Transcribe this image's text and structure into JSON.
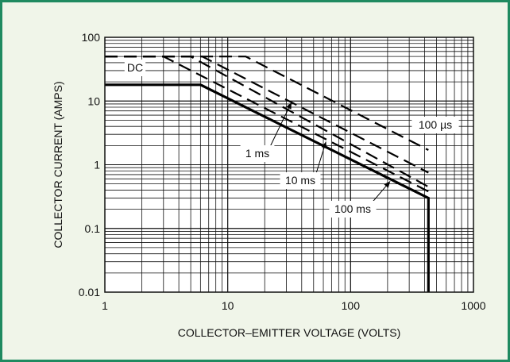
{
  "chart_data": {
    "type": "line",
    "title": "",
    "xlabel": "COLLECTOR–EMITTER VOLTAGE (VOLTS)",
    "ylabel": "COLLECTOR CURRENT (AMPS)",
    "x_scale": "log",
    "y_scale": "log",
    "xlim": [
      1,
      1000
    ],
    "ylim": [
      0.01,
      100
    ],
    "x_ticks": [
      "1",
      "10",
      "100",
      "1000"
    ],
    "y_ticks": [
      "0.01",
      "0.1",
      "1",
      "10",
      "100"
    ],
    "grid": true,
    "series": [
      {
        "name": "DC",
        "style": "solid",
        "x": [
          1,
          6,
          430,
          430
        ],
        "y": [
          18,
          18,
          0.3,
          0.01
        ]
      },
      {
        "name": "100 ms",
        "style": "dashed",
        "x": [
          1,
          3,
          430
        ],
        "y": [
          50,
          50,
          0.38
        ]
      },
      {
        "name": "10 ms",
        "style": "dashed",
        "x": [
          1,
          5,
          430
        ],
        "y": [
          50,
          50,
          0.45
        ]
      },
      {
        "name": "1 ms",
        "style": "dashed",
        "x": [
          1,
          6.2,
          430
        ],
        "y": [
          50,
          50,
          0.75
        ]
      },
      {
        "name": "100 µs",
        "style": "dashed",
        "x": [
          1,
          14,
          430
        ],
        "y": [
          50,
          50,
          1.7
        ]
      }
    ],
    "callouts": [
      {
        "text": "DC",
        "series": "DC",
        "x": 6,
        "y": 18
      },
      {
        "text": "1 ms",
        "series": "1 ms",
        "x": 33,
        "y": 9.5
      },
      {
        "text": "10 ms",
        "series": "10 ms",
        "x": 63,
        "y": 2.3
      },
      {
        "text": "100 ms",
        "series": "100 ms",
        "x": 210,
        "y": 0.55
      },
      {
        "text": "100 µs",
        "series": "100 µs",
        "x": 430,
        "y": 2.5
      }
    ]
  }
}
